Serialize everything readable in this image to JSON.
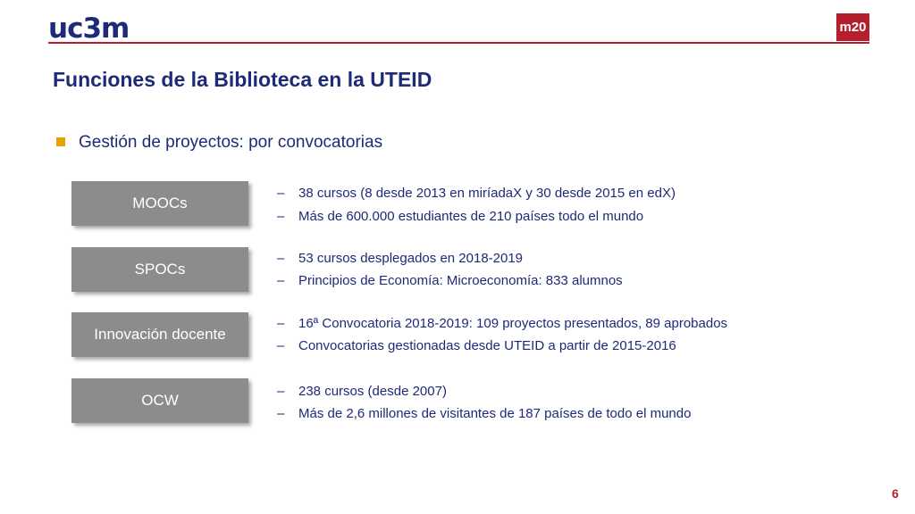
{
  "header": {
    "logo": "uc3m",
    "badge": "m20"
  },
  "title": "Funciones de la Biblioteca en la UTEID",
  "subtitle": "Gestión de proyectos: por convocatorias",
  "sections": [
    {
      "label": "MOOCs",
      "items": [
        "38 cursos (8 desde 2013 en miríadaX y 30 desde 2015 en edX)",
        "Más de 600.000 estudiantes de 210 países todo el mundo"
      ]
    },
    {
      "label": "SPOCs",
      "items": [
        "53 cursos desplegados en 2018-2019",
        "Principios de Economía: Microeconomía: 833 alumnos"
      ]
    },
    {
      "label": "Innovación docente",
      "items": [
        "16ª Convocatoria 2018-2019: 109 proyectos presentados, 89 aprobados",
        "Convocatorias gestionadas desde UTEID a partir de 2015-2016"
      ]
    },
    {
      "label": "OCW",
      "items": [
        "238 cursos (desde 2007)",
        "Más de 2,6 millones de visitantes de 187 países de todo el mundo"
      ]
    }
  ],
  "dash": "–",
  "page_number": "6",
  "colors": {
    "navy": "#1e2a78",
    "red": "#b51f2d",
    "box": "#8c8c8c",
    "bullet": "#e8a200"
  }
}
